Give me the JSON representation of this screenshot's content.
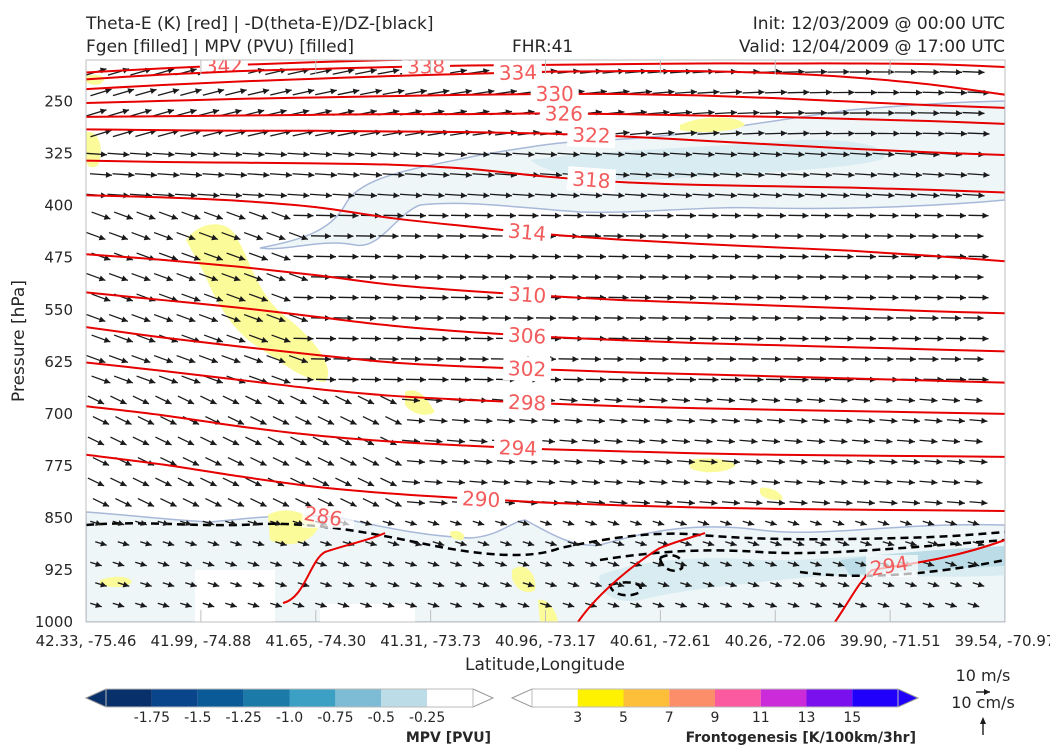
{
  "header": {
    "line1_left": "Theta-E (K) [red] | -D(theta-E)/DZ-[black]",
    "line2_left": "Fgen [filled] | MPV (PVU) [filled]",
    "fhr": "FHR:41",
    "line1_right": "Init: 12/03/2009 @ 00:00 UTC",
    "line2_right": "Valid: 12/04/2009 @ 17:00 UTC"
  },
  "chart_data": {
    "type": "cross-section",
    "xlabel": "Latitude,Longitude",
    "ylabel": "Pressure [hPa]",
    "x_ticks": [
      "42.33, -75.46",
      "41.99, -74.88",
      "41.65, -74.30",
      "41.31, -73.73",
      "40.96, -73.17",
      "40.61, -72.61",
      "40.26, -72.06",
      "39.90, -71.51",
      "39.54, -70.97"
    ],
    "y_ticks": [
      250,
      325,
      400,
      475,
      550,
      625,
      700,
      775,
      850,
      925,
      1000
    ],
    "ylim": [
      1000,
      190
    ],
    "y_inverted": true,
    "theta_e_contours": [
      {
        "level": 342,
        "label": "342",
        "p": [
          208,
          202,
          197,
          193,
          190,
          188,
          186,
          184,
          182,
          182,
          181,
          181,
          180
        ]
      },
      {
        "level": 338,
        "label": "338",
        "p": [
          218,
          211,
          206,
          203,
          200,
          198,
          197,
          196,
          195,
          195,
          195,
          196,
          200
        ]
      },
      {
        "level": 334,
        "label": "334",
        "p": [
          232,
          226,
          221,
          217,
          213,
          210,
          207,
          206,
          206,
          209,
          215,
          225,
          240
        ]
      },
      {
        "level": 330,
        "label": "330",
        "p": [
          252,
          249,
          246,
          244,
          242,
          240,
          239,
          239,
          241,
          245,
          250,
          255,
          259
        ]
      },
      {
        "level": 326,
        "label": "326",
        "p": [
          272,
          271,
          270,
          269,
          268,
          268,
          267,
          268,
          270,
          272,
          275,
          278,
          282
        ]
      },
      {
        "level": 322,
        "label": "322",
        "p": [
          290,
          291,
          292,
          292,
          293,
          294,
          296,
          300,
          306,
          312,
          318,
          323,
          327
        ]
      },
      {
        "level": 318,
        "label": "318",
        "p": [
          335,
          337,
          338,
          339,
          341,
          347,
          358,
          366,
          370,
          372,
          374,
          377,
          381
        ]
      },
      {
        "level": 314,
        "label": "314",
        "p": [
          385,
          388,
          393,
          402,
          418,
          430,
          441,
          449,
          455,
          460,
          465,
          472,
          480
        ]
      },
      {
        "level": 310,
        "label": "310",
        "p": [
          470,
          478,
          488,
          500,
          514,
          523,
          530,
          536,
          540,
          544,
          548,
          552,
          555
        ]
      },
      {
        "level": 306,
        "label": "306",
        "p": [
          525,
          536,
          547,
          560,
          573,
          582,
          589,
          594,
          598,
          601,
          604,
          607,
          610
        ]
      },
      {
        "level": 302,
        "label": "302",
        "p": [
          575,
          590,
          603,
          615,
          626,
          632,
          636,
          640,
          643,
          646,
          649,
          652,
          655
        ]
      },
      {
        "level": 298,
        "label": "298",
        "p": [
          626,
          638,
          651,
          664,
          674,
          680,
          685,
          689,
          692,
          694,
          696,
          698,
          700
        ]
      },
      {
        "level": 294,
        "label": "294",
        "p": [
          689,
          702,
          718,
          731,
          740,
          746,
          751,
          754,
          757,
          759,
          760,
          761,
          762
        ]
      },
      {
        "level": 290,
        "label": "290",
        "p": [
          759,
          773,
          790,
          805,
          815,
          822,
          828,
          832,
          835,
          837,
          838,
          839,
          840
        ]
      }
    ],
    "annotations": [
      "286",
      "294"
    ],
    "mpv_colorbar": {
      "label": "MPV [PVU]",
      "ticks": [
        "-1.75",
        "-1.5",
        "-1.25",
        "-1.0",
        "-0.75",
        "-0.5",
        "-0.25"
      ],
      "colors": [
        "#08306b",
        "#08458b",
        "#0a5a98",
        "#1c7aa8",
        "#3c9fc4",
        "#7ebbd4",
        "#bcdde7",
        "#ffffff"
      ]
    },
    "fgen_colorbar": {
      "label": "Frontogenesis [K/100km/3hr]",
      "ticks": [
        "3",
        "5",
        "7",
        "9",
        "11",
        "13",
        "15"
      ],
      "colors": [
        "#ffffff",
        "#fff200",
        "#fdbf3a",
        "#fc8e6a",
        "#fb5aa0",
        "#cb2bd8",
        "#7a10ee",
        "#2100fb"
      ]
    },
    "vector_key": {
      "horizontal": "10 m/s",
      "vertical": "10 cm/s"
    }
  }
}
